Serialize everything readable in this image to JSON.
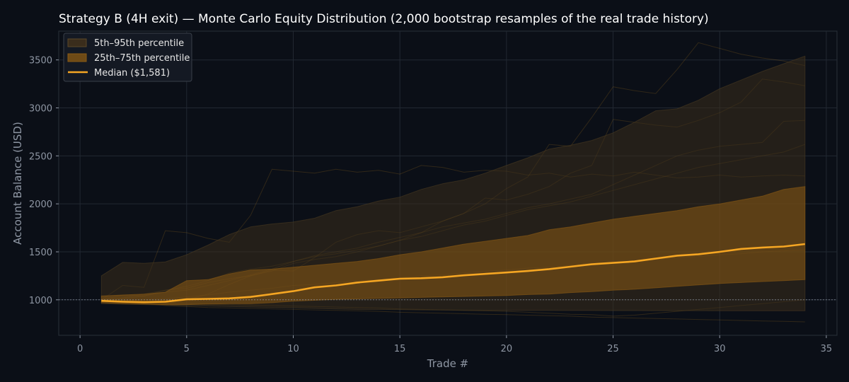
{
  "chart_data": {
    "type": "area",
    "title": "Strategy B (4H exit) — Monte Carlo Equity Distribution (2,000 bootstrap resamples of the real trade history)",
    "xlabel": "Trade #",
    "ylabel": "Account Balance (USD)",
    "xlim": [
      -1,
      35.5
    ],
    "ylim": [
      630,
      3800
    ],
    "xticks": [
      0,
      5,
      10,
      15,
      20,
      25,
      30,
      35
    ],
    "yticks": [
      1000,
      1500,
      2000,
      2500,
      3000,
      3500
    ],
    "grid": true,
    "legend_position": "top-left",
    "reference_line": 1000,
    "colors": {
      "background": "#0b0f17",
      "axes_edge": "#2a303a",
      "grid": "#222832",
      "median": "#f5a623",
      "band_outer": "#3a2d1c",
      "band_inner": "#8a5a14",
      "paths": "#b8801e"
    },
    "legend": [
      {
        "label": "5th–95th percentile",
        "kind": "outer"
      },
      {
        "label": "25th–75th percentile",
        "kind": "inner"
      },
      {
        "label": "Median ($1,581)",
        "kind": "median"
      }
    ],
    "x": [
      1,
      2,
      3,
      4,
      5,
      6,
      7,
      8,
      9,
      10,
      11,
      12,
      13,
      14,
      15,
      16,
      17,
      18,
      19,
      20,
      21,
      22,
      23,
      24,
      25,
      26,
      27,
      28,
      29,
      30,
      31,
      32,
      33,
      34
    ],
    "series": [
      {
        "name": "5th–95th percentile (upper)",
        "values": [
          1250,
          1390,
          1380,
          1395,
          1470,
          1570,
          1680,
          1760,
          1790,
          1810,
          1850,
          1930,
          1970,
          2030,
          2070,
          2150,
          2210,
          2250,
          2320,
          2400,
          2480,
          2570,
          2610,
          2660,
          2740,
          2850,
          2970,
          2990,
          3080,
          3200,
          3290,
          3380,
          3460,
          3540
        ]
      },
      {
        "name": "25th–75th percentile (upper)",
        "values": [
          1040,
          1050,
          1060,
          1080,
          1200,
          1210,
          1270,
          1310,
          1320,
          1340,
          1360,
          1380,
          1400,
          1430,
          1470,
          1500,
          1540,
          1580,
          1610,
          1640,
          1670,
          1730,
          1760,
          1800,
          1840,
          1870,
          1900,
          1930,
          1970,
          2000,
          2040,
          2080,
          2150,
          2180
        ]
      },
      {
        "name": "Median",
        "values": [
          990,
          980,
          975,
          980,
          1005,
          1010,
          1015,
          1030,
          1060,
          1090,
          1130,
          1150,
          1180,
          1200,
          1220,
          1225,
          1235,
          1255,
          1270,
          1285,
          1300,
          1320,
          1345,
          1370,
          1385,
          1400,
          1430,
          1460,
          1475,
          1500,
          1530,
          1545,
          1555,
          1581
        ]
      },
      {
        "name": "25th–75th percentile (lower)",
        "values": [
          970,
          960,
          955,
          950,
          950,
          955,
          960,
          960,
          970,
          985,
          995,
          1005,
          1010,
          1015,
          1020,
          1025,
          1030,
          1035,
          1040,
          1045,
          1055,
          1060,
          1075,
          1085,
          1100,
          1110,
          1125,
          1140,
          1155,
          1170,
          1180,
          1190,
          1200,
          1210
        ]
      },
      {
        "name": "5th–95th percentile (lower)",
        "values": [
          960,
          955,
          950,
          945,
          940,
          935,
          930,
          925,
          920,
          915,
          910,
          905,
          900,
          900,
          898,
          895,
          893,
          892,
          891,
          890,
          890,
          890,
          889,
          889,
          888,
          888,
          887,
          887,
          887,
          886,
          886,
          886,
          886,
          886
        ]
      }
    ],
    "sample_paths": [
      [
        1000,
        1150,
        1130,
        1720,
        1700,
        1640,
        1600,
        1880,
        2360,
        2340,
        2320,
        2360,
        2330,
        2350,
        2310,
        2400,
        2380,
        2330,
        2350,
        2340,
        2300,
        2320,
        2280,
        2310,
        2290,
        2330,
        2300,
        2270,
        2280,
        2300,
        2280,
        2290,
        2300,
        2290
      ],
      [
        1000,
        990,
        970,
        960,
        1000,
        1060,
        1160,
        1250,
        1310,
        1300,
        1440,
        1600,
        1680,
        1720,
        1700,
        1760,
        1820,
        1900,
        2000,
        2160,
        2280,
        2620,
        2600,
        2900,
        3220,
        3180,
        3150,
        3400,
        3680,
        3620,
        3560,
        3520,
        3490,
        3440
      ],
      [
        990,
        1010,
        1040,
        1080,
        1100,
        1150,
        1200,
        1260,
        1320,
        1400,
        1460,
        1500,
        1540,
        1600,
        1650,
        1700,
        1820,
        1900,
        2060,
        2040,
        2100,
        2180,
        2320,
        2400,
        2880,
        2850,
        2820,
        2800,
        2870,
        2950,
        3060,
        3300,
        3270,
        3230
      ],
      [
        1000,
        1000,
        985,
        970,
        960,
        955,
        950,
        945,
        940,
        935,
        930,
        925,
        920,
        915,
        905,
        900,
        895,
        890,
        885,
        880,
        870,
        860,
        850,
        845,
        830,
        840,
        860,
        880,
        900,
        920,
        940,
        960,
        980,
        1000
      ],
      [
        1000,
        1050,
        1040,
        1100,
        1120,
        1180,
        1220,
        1250,
        1300,
        1380,
        1420,
        1450,
        1500,
        1560,
        1620,
        1700,
        1760,
        1800,
        1840,
        1900,
        1960,
        2000,
        2050,
        2100,
        2200,
        2300,
        2400,
        2500,
        2560,
        2600,
        2620,
        2640,
        2860,
        2870
      ],
      [
        1000,
        980,
        960,
        940,
        930,
        920,
        915,
        910,
        905,
        900,
        895,
        890,
        885,
        880,
        870,
        865,
        860,
        855,
        850,
        845,
        840,
        835,
        830,
        820,
        815,
        810,
        805,
        800,
        795,
        790,
        785,
        780,
        775,
        770
      ],
      [
        1000,
        1020,
        1060,
        1100,
        1140,
        1200,
        1280,
        1320,
        1350,
        1400,
        1450,
        1480,
        1520,
        1560,
        1620,
        1660,
        1720,
        1780,
        1820,
        1880,
        1940,
        1980,
        2020,
        2080,
        2140,
        2200,
        2260,
        2320,
        2380,
        2420,
        2460,
        2500,
        2540,
        2620
      ],
      [
        1000,
        990,
        1000,
        1010,
        1030,
        1050,
        1080,
        1100,
        1120,
        1150,
        1160,
        1180,
        1200,
        1210,
        1230,
        1250,
        1260,
        1280,
        1300,
        1310,
        1330,
        1340,
        1360,
        1380,
        1390,
        1400,
        1420,
        1440,
        1450,
        1470,
        1480,
        1500,
        1510,
        1520
      ]
    ]
  }
}
